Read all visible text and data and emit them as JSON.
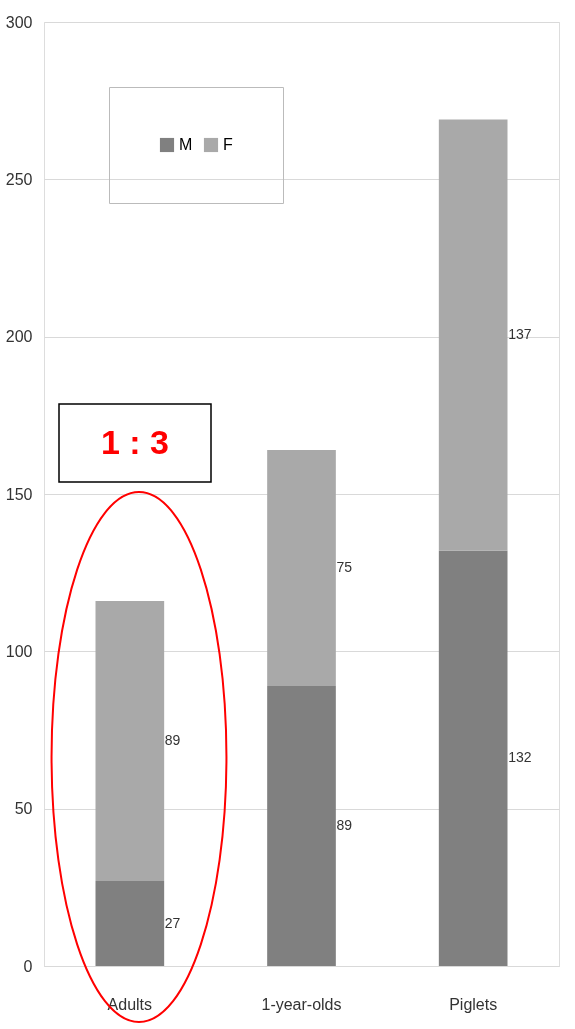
{
  "chart_data": {
    "type": "bar",
    "stacked": true,
    "categories": [
      "Adults",
      "1-year-olds",
      "Piglets"
    ],
    "series": [
      {
        "name": "M",
        "color": "#808080",
        "values": [
          27,
          89,
          132
        ]
      },
      {
        "name": "F",
        "color": "#a9a9a9",
        "values": [
          89,
          75,
          137
        ]
      }
    ],
    "ylim": [
      0,
      300
    ],
    "yticks": [
      0,
      50,
      100,
      150,
      200,
      250,
      300
    ],
    "grid": "y",
    "legend": "top left",
    "data_labels": true,
    "annotations": [
      "1 : 3"
    ]
  }
}
